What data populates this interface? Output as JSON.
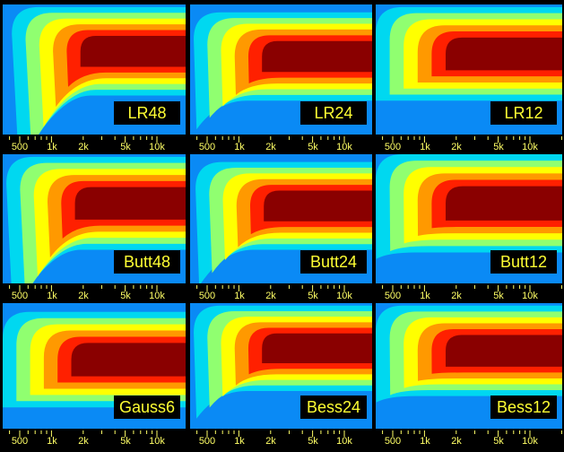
{
  "panels": [
    {
      "label": "LR48",
      "ticks": [
        "500",
        "1k",
        "2k",
        "5k",
        "10k"
      ]
    },
    {
      "label": "LR24",
      "ticks": [
        "500",
        "1k",
        "2k",
        "5k",
        "10k"
      ]
    },
    {
      "label": "LR12",
      "ticks": [
        "500",
        "1k",
        "2k",
        "5k",
        "10k"
      ]
    },
    {
      "label": "Butt48",
      "ticks": [
        "500",
        "1k",
        "2k",
        "5k",
        "10k"
      ]
    },
    {
      "label": "Butt24",
      "ticks": [
        "500",
        "1k",
        "2k",
        "5k",
        "10k"
      ]
    },
    {
      "label": "Butt12",
      "ticks": [
        "500",
        "1k",
        "2k",
        "5k",
        "10k"
      ]
    },
    {
      "label": "Gauss6",
      "ticks": [
        "500",
        "1k",
        "2k",
        "5k",
        "10k"
      ]
    },
    {
      "label": "Bess24",
      "ticks": [
        "500",
        "1k",
        "2k",
        "5k",
        "10k"
      ]
    },
    {
      "label": "Bess12",
      "ticks": [
        "500",
        "1k",
        "2k",
        "5k",
        "10k"
      ]
    }
  ]
}
